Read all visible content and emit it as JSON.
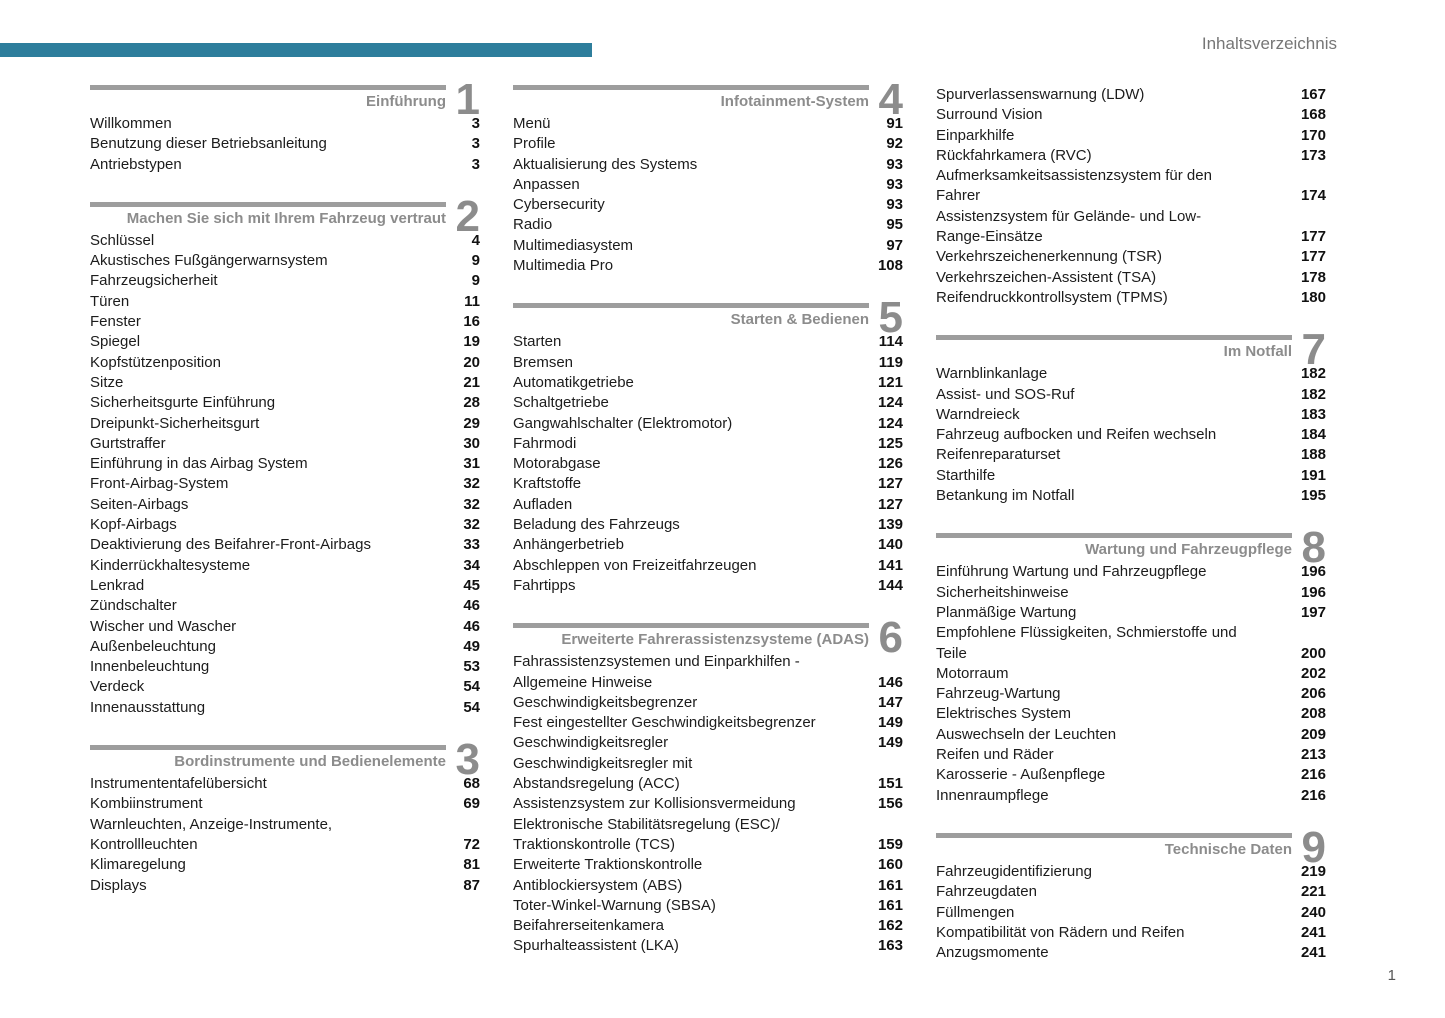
{
  "header": {
    "title": "Inhaltsverzeichnis"
  },
  "footer": {
    "page_number": "1"
  },
  "colors": {
    "accent_bar": "#2e7e9c",
    "section_heading": "#8c8c8c",
    "section_rule": "#9d9d9d",
    "entry_text": "#1c1c1c"
  },
  "columns": [
    {
      "blocks": [
        {
          "number": "1",
          "title": "Einführung",
          "entries": [
            {
              "lines": [
                "Willkommen"
              ],
              "page": "3"
            },
            {
              "lines": [
                "Benutzung dieser Betriebsanleitung"
              ],
              "page": "3"
            },
            {
              "lines": [
                "Antriebstypen"
              ],
              "page": "3"
            }
          ]
        },
        {
          "number": "2",
          "title": "Machen Sie sich mit Ihrem Fahrzeug vertraut",
          "entries": [
            {
              "lines": [
                "Schlüssel"
              ],
              "page": "4"
            },
            {
              "lines": [
                "Akustisches Fußgängerwarnsystem"
              ],
              "page": "9"
            },
            {
              "lines": [
                "Fahrzeugsicherheit"
              ],
              "page": "9"
            },
            {
              "lines": [
                "Türen"
              ],
              "page": "11"
            },
            {
              "lines": [
                "Fenster"
              ],
              "page": "16"
            },
            {
              "lines": [
                "Spiegel"
              ],
              "page": "19"
            },
            {
              "lines": [
                "Kopfstützenposition"
              ],
              "page": "20"
            },
            {
              "lines": [
                "Sitze"
              ],
              "page": "21"
            },
            {
              "lines": [
                "Sicherheitsgurte Einführung"
              ],
              "page": "28"
            },
            {
              "lines": [
                "Dreipunkt-Sicherheitsgurt"
              ],
              "page": "29"
            },
            {
              "lines": [
                "Gurtstraffer"
              ],
              "page": "30"
            },
            {
              "lines": [
                "Einführung in das Airbag System"
              ],
              "page": "31"
            },
            {
              "lines": [
                "Front-Airbag-System"
              ],
              "page": "32"
            },
            {
              "lines": [
                "Seiten-Airbags"
              ],
              "page": "32"
            },
            {
              "lines": [
                "Kopf-Airbags"
              ],
              "page": "32"
            },
            {
              "lines": [
                "Deaktivierung des Beifahrer-Front-Airbags"
              ],
              "page": "33"
            },
            {
              "lines": [
                "Kinderrückhaltesysteme"
              ],
              "page": "34"
            },
            {
              "lines": [
                "Lenkrad"
              ],
              "page": "45"
            },
            {
              "lines": [
                "Zündschalter"
              ],
              "page": "46"
            },
            {
              "lines": [
                "Wischer und Wascher"
              ],
              "page": "46"
            },
            {
              "lines": [
                "Außenbeleuchtung"
              ],
              "page": "49"
            },
            {
              "lines": [
                "Innenbeleuchtung"
              ],
              "page": "53"
            },
            {
              "lines": [
                "Verdeck"
              ],
              "page": "54"
            },
            {
              "lines": [
                "Innenausstattung"
              ],
              "page": "54"
            }
          ]
        },
        {
          "number": "3",
          "title": "Bordinstrumente und Bedienelemente",
          "entries": [
            {
              "lines": [
                "Instrumententafelübersicht"
              ],
              "page": "68"
            },
            {
              "lines": [
                "Kombiinstrument"
              ],
              "page": "69"
            },
            {
              "lines": [
                "Warnleuchten, Anzeige-Instrumente,",
                "Kontrollleuchten"
              ],
              "page": "72"
            },
            {
              "lines": [
                "Klimaregelung"
              ],
              "page": "81"
            },
            {
              "lines": [
                "Displays"
              ],
              "page": "87"
            }
          ]
        }
      ]
    },
    {
      "blocks": [
        {
          "number": "4",
          "title": "Infotainment-System",
          "entries": [
            {
              "lines": [
                "Menü"
              ],
              "page": "91"
            },
            {
              "lines": [
                "Profile"
              ],
              "page": "92"
            },
            {
              "lines": [
                "Aktualisierung des Systems"
              ],
              "page": "93"
            },
            {
              "lines": [
                "Anpassen"
              ],
              "page": "93"
            },
            {
              "lines": [
                "Cybersecurity"
              ],
              "page": "93"
            },
            {
              "lines": [
                "Radio"
              ],
              "page": "95"
            },
            {
              "lines": [
                "Multimediasystem"
              ],
              "page": "97"
            },
            {
              "lines": [
                "Multimedia Pro"
              ],
              "page": "108"
            }
          ]
        },
        {
          "number": "5",
          "title": "Starten & Bedienen",
          "entries": [
            {
              "lines": [
                "Starten"
              ],
              "page": "114"
            },
            {
              "lines": [
                "Bremsen"
              ],
              "page": "119"
            },
            {
              "lines": [
                "Automatikgetriebe"
              ],
              "page": "121"
            },
            {
              "lines": [
                "Schaltgetriebe"
              ],
              "page": "124"
            },
            {
              "lines": [
                "Gangwahlschalter (Elektromotor)"
              ],
              "page": "124"
            },
            {
              "lines": [
                "Fahrmodi"
              ],
              "page": "125"
            },
            {
              "lines": [
                "Motorabgase"
              ],
              "page": "126"
            },
            {
              "lines": [
                "Kraftstoffe"
              ],
              "page": "127"
            },
            {
              "lines": [
                "Aufladen"
              ],
              "page": "127"
            },
            {
              "lines": [
                "Beladung des Fahrzeugs"
              ],
              "page": "139"
            },
            {
              "lines": [
                "Anhängerbetrieb"
              ],
              "page": "140"
            },
            {
              "lines": [
                "Abschleppen von Freizeitfahrzeugen"
              ],
              "page": "141"
            },
            {
              "lines": [
                "Fahrtipps"
              ],
              "page": "144"
            }
          ]
        },
        {
          "number": "6",
          "title": "Erweiterte Fahrerassistenzsysteme (ADAS)",
          "entries": [
            {
              "lines": [
                "Fahrassistenzsystemen und Einparkhilfen -",
                "Allgemeine Hinweise"
              ],
              "page": "146"
            },
            {
              "lines": [
                "Geschwindigkeitsbegrenzer"
              ],
              "page": "147"
            },
            {
              "lines": [
                "Fest eingestellter Geschwindigkeitsbegrenzer"
              ],
              "page": "149"
            },
            {
              "lines": [
                "Geschwindigkeitsregler"
              ],
              "page": "149"
            },
            {
              "lines": [
                "Geschwindigkeitsregler mit",
                "Abstandsregelung (ACC)"
              ],
              "page": "151"
            },
            {
              "lines": [
                "Assistenzsystem zur Kollisionsvermeidung"
              ],
              "page": "156"
            },
            {
              "lines": [
                "Elektronische Stabilitätsregelung (ESC)/",
                "Traktionskontrolle (TCS)"
              ],
              "page": "159"
            },
            {
              "lines": [
                "Erweiterte Traktionskontrolle"
              ],
              "page": "160"
            },
            {
              "lines": [
                "Antiblockiersystem (ABS)"
              ],
              "page": "161"
            },
            {
              "lines": [
                "Toter-Winkel-Warnung (SBSA)"
              ],
              "page": "161"
            },
            {
              "lines": [
                "Beifahrerseitenkamera"
              ],
              "page": "162"
            },
            {
              "lines": [
                "Spurhalteassistent (LKA)"
              ],
              "page": "163"
            }
          ]
        }
      ]
    },
    {
      "blocks": [
        {
          "entries": [
            {
              "lines": [
                "Spurverlassenswarnung (LDW)"
              ],
              "page": "167"
            },
            {
              "lines": [
                "Surround Vision"
              ],
              "page": "168"
            },
            {
              "lines": [
                "Einparkhilfe"
              ],
              "page": "170"
            },
            {
              "lines": [
                "Rückfahrkamera (RVC)"
              ],
              "page": "173"
            },
            {
              "lines": [
                "Aufmerksamkeitsassistenzsystem für den",
                "Fahrer"
              ],
              "page": "174"
            },
            {
              "lines": [
                "Assistenzsystem für Gelände- und Low-",
                "Range-Einsätze"
              ],
              "page": "177"
            },
            {
              "lines": [
                "Verkehrszeichenerkennung (TSR)"
              ],
              "page": "177"
            },
            {
              "lines": [
                "Verkehrszeichen-Assistent (TSA)"
              ],
              "page": "178"
            },
            {
              "lines": [
                "Reifendruckkontrollsystem (TPMS)"
              ],
              "page": "180"
            }
          ]
        },
        {
          "number": "7",
          "title": "Im Notfall",
          "entries": [
            {
              "lines": [
                "Warnblinkanlage"
              ],
              "page": "182"
            },
            {
              "lines": [
                "Assist- und SOS-Ruf"
              ],
              "page": "182"
            },
            {
              "lines": [
                "Warndreieck"
              ],
              "page": "183"
            },
            {
              "lines": [
                "Fahrzeug aufbocken und Reifen wechseln"
              ],
              "page": "184"
            },
            {
              "lines": [
                "Reifenreparaturset"
              ],
              "page": "188"
            },
            {
              "lines": [
                "Starthilfe"
              ],
              "page": "191"
            },
            {
              "lines": [
                "Betankung im Notfall"
              ],
              "page": "195"
            }
          ]
        },
        {
          "number": "8",
          "title": "Wartung und Fahrzeugpflege",
          "entries": [
            {
              "lines": [
                "Einführung Wartung und Fahrzeugpflege"
              ],
              "page": "196"
            },
            {
              "lines": [
                "Sicherheitshinweise"
              ],
              "page": "196"
            },
            {
              "lines": [
                "Planmäßige Wartung"
              ],
              "page": "197"
            },
            {
              "lines": [
                "Empfohlene Flüssigkeiten, Schmierstoffe und",
                "Teile"
              ],
              "page": "200"
            },
            {
              "lines": [
                "Motorraum"
              ],
              "page": "202"
            },
            {
              "lines": [
                "Fahrzeug-Wartung"
              ],
              "page": "206"
            },
            {
              "lines": [
                "Elektrisches System"
              ],
              "page": "208"
            },
            {
              "lines": [
                "Auswechseln der Leuchten"
              ],
              "page": "209"
            },
            {
              "lines": [
                "Reifen und Räder"
              ],
              "page": "213"
            },
            {
              "lines": [
                "Karosserie - Außenpflege"
              ],
              "page": "216"
            },
            {
              "lines": [
                "Innenraumpflege"
              ],
              "page": "216"
            }
          ]
        },
        {
          "number": "9",
          "title": "Technische Daten",
          "entries": [
            {
              "lines": [
                "Fahrzeugidentifizierung"
              ],
              "page": "219"
            },
            {
              "lines": [
                "Fahrzeugdaten"
              ],
              "page": "221"
            },
            {
              "lines": [
                "Füllmengen"
              ],
              "page": "240"
            },
            {
              "lines": [
                "Kompatibilität von Rädern und Reifen"
              ],
              "page": "241"
            },
            {
              "lines": [
                "Anzugsmomente"
              ],
              "page": "241"
            }
          ]
        }
      ]
    }
  ]
}
